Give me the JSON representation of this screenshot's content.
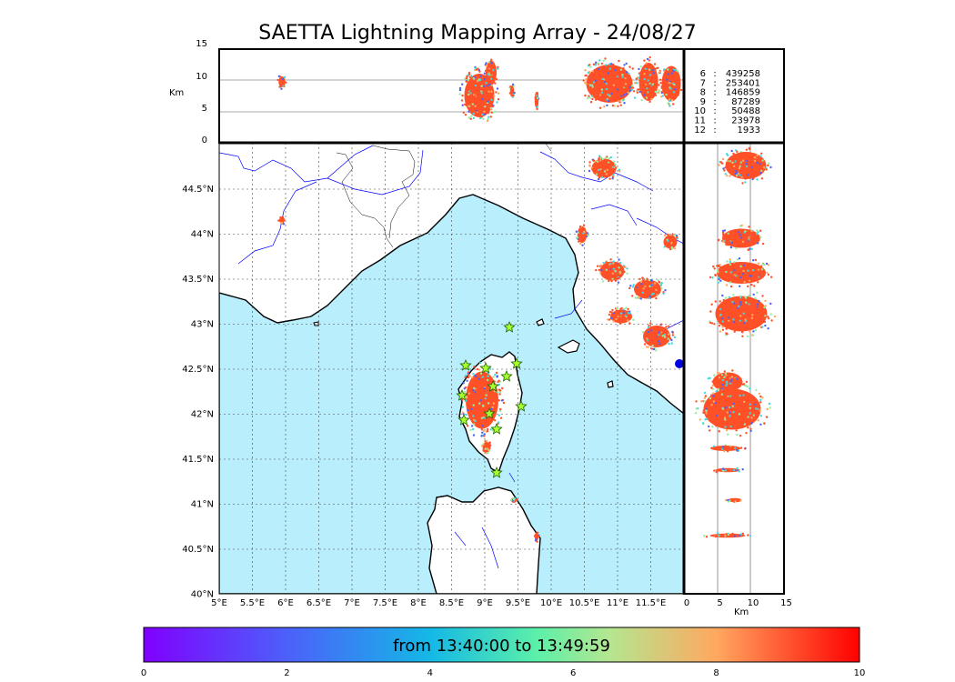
{
  "title": "SAETTA Lightning Mapping Array - 24/08/27",
  "altitude_panel": {
    "unit_label": "Km",
    "ticks": [
      "15",
      "10",
      "5",
      "0"
    ]
  },
  "side_panel": {
    "unit_label": "Km",
    "ticks": [
      "0",
      "5",
      "10",
      "15"
    ]
  },
  "map": {
    "lat_labels": [
      "44.5°N",
      "44°N",
      "43.5°N",
      "43°N",
      "42.5°N",
      "42°N",
      "41.5°N",
      "41°N",
      "40.5°N",
      "40°N"
    ],
    "lon_labels": [
      "5°E",
      "5.5°E",
      "6°E",
      "6.5°E",
      "7°E",
      "7.5°E",
      "8°E",
      "8.5°E",
      "9°E",
      "9.5°E",
      "10°E",
      "10.5°E",
      "11°E",
      "11.5°E"
    ],
    "sea_color": "#b9eefc",
    "lightning_color": "#ff5028"
  },
  "station_counts": [
    {
      "stations": "6",
      "sep": ":",
      "count": "439258",
      "highlight": false
    },
    {
      "stations": "7",
      "sep": ":",
      "count": "253401",
      "highlight": true
    },
    {
      "stations": "8",
      "sep": ":",
      "count": "146859",
      "highlight": false
    },
    {
      "stations": "9",
      "sep": ":",
      "count": "87289",
      "highlight": false
    },
    {
      "stations": "10",
      "sep": ":",
      "count": "50488",
      "highlight": false
    },
    {
      "stations": "11",
      "sep": ":",
      "count": "23978",
      "highlight": false
    },
    {
      "stations": "12",
      "sep": ":",
      "count": "1933",
      "highlight": false
    }
  ],
  "colorbar": {
    "label": "from 13:40:00 to 13:49:59",
    "ticks": [
      "0",
      "2",
      "4",
      "6",
      "8",
      "10"
    ]
  }
}
